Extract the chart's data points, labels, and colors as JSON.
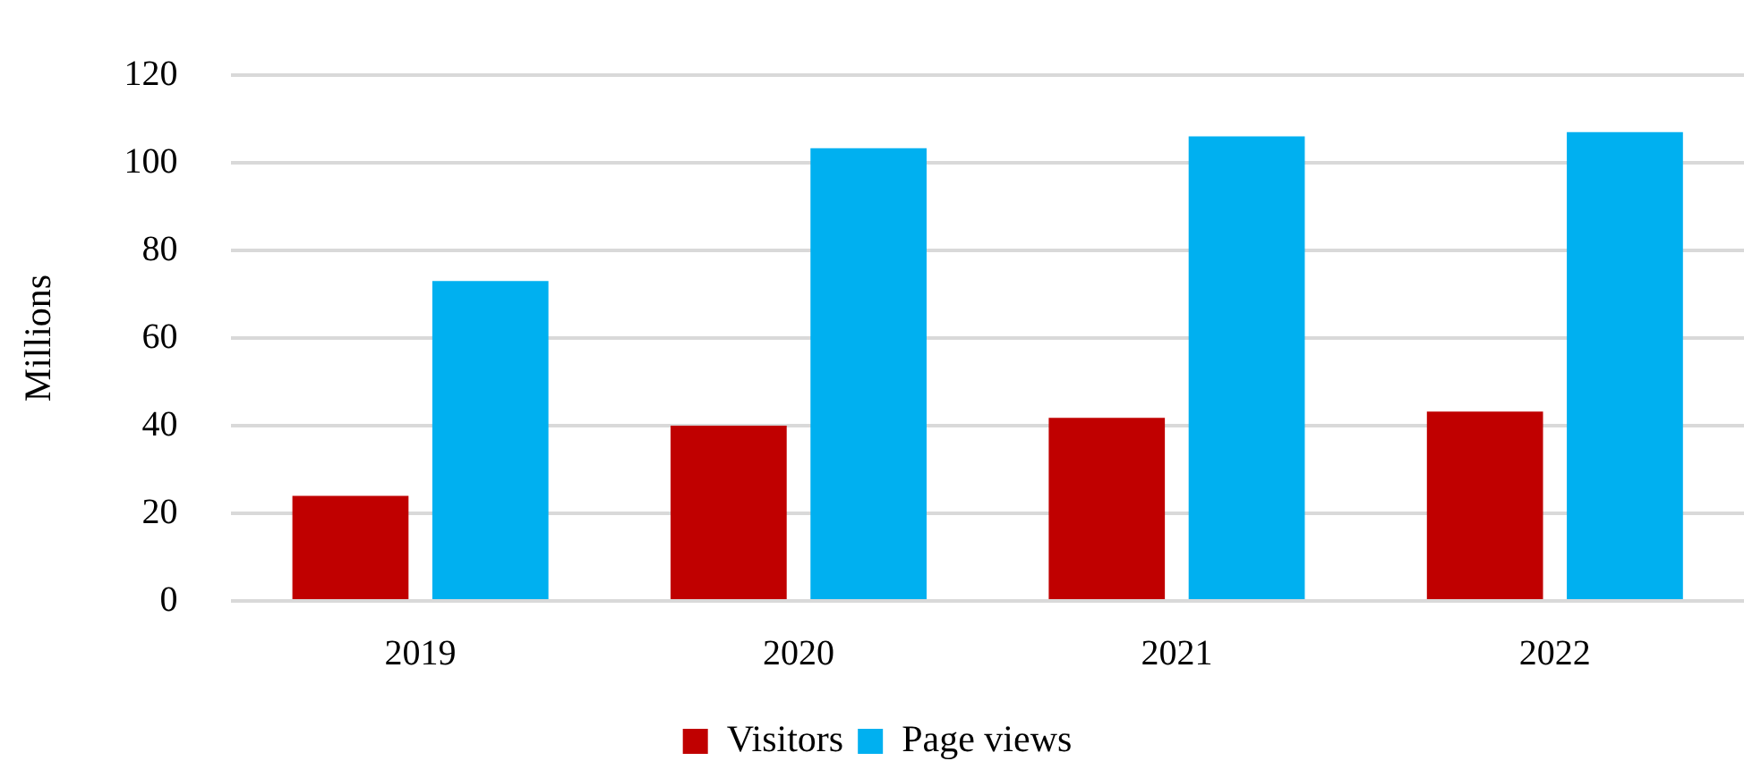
{
  "chart_data": {
    "type": "bar",
    "ylabel": "Millions",
    "categories": [
      "2019",
      "2020",
      "2021",
      "2022"
    ],
    "series": [
      {
        "name": "Visitors",
        "color": "#c00000",
        "values": [
          24,
          40,
          41.8,
          43.2
        ]
      },
      {
        "name": "Page views",
        "color": "#00b0f0",
        "values": [
          73,
          103.3,
          106,
          107
        ]
      }
    ],
    "ylim": [
      0,
      120
    ],
    "yticks": [
      0,
      20,
      40,
      60,
      80,
      100,
      120
    ],
    "grid": "y",
    "legend": "bottom"
  }
}
